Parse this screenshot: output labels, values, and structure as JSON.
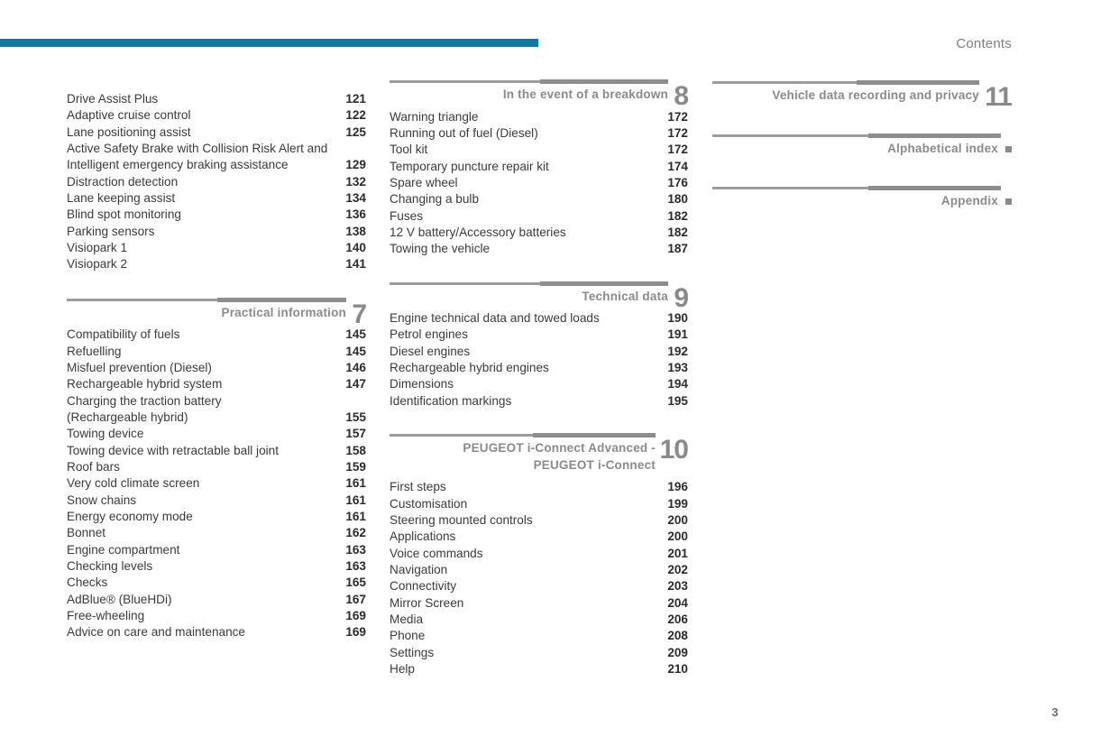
{
  "header": {
    "title": "Contents"
  },
  "footer": {
    "page_number": "3"
  },
  "colors": {
    "accent": "#0e7aa6",
    "rule_gray": "#8d8d8d",
    "heading_gray": "#8a8a8a",
    "text_dark": "#3a3a3a"
  },
  "columns": [
    {
      "name": "toc-column-1",
      "sections": [
        {
          "number": "",
          "bullet": false,
          "title_lines": [],
          "entries": [
            {
              "label": "Drive Assist Plus",
              "page": "121"
            },
            {
              "label": "Adaptive cruise control",
              "page": "122"
            },
            {
              "label": "Lane positioning assist",
              "page": "125"
            },
            {
              "label": "Active Safety Brake with Collision Risk Alert and",
              "page": ""
            },
            {
              "label": "Intelligent emergency braking assistance",
              "page": "129"
            },
            {
              "label": "Distraction detection",
              "page": "132"
            },
            {
              "label": "Lane keeping assist",
              "page": "134"
            },
            {
              "label": "Blind spot monitoring",
              "page": "136"
            },
            {
              "label": "Parking sensors",
              "page": "138"
            },
            {
              "label": "Visiopark 1",
              "page": "140"
            },
            {
              "label": "Visiopark 2",
              "page": "141"
            }
          ]
        },
        {
          "number": "7",
          "bullet": false,
          "title_lines": [
            "Practical information"
          ],
          "entries": [
            {
              "label": "Compatibility of fuels",
              "page": "145"
            },
            {
              "label": "Refuelling",
              "page": "145"
            },
            {
              "label": "Misfuel prevention (Diesel)",
              "page": "146"
            },
            {
              "label": "Rechargeable hybrid system",
              "page": "147"
            },
            {
              "label": "Charging the traction battery",
              "page": ""
            },
            {
              "label": "(Rechargeable hybrid)",
              "page": "155"
            },
            {
              "label": "Towing device",
              "page": "157"
            },
            {
              "label": "Towing device with retractable ball joint",
              "page": "158"
            },
            {
              "label": "Roof bars",
              "page": "159"
            },
            {
              "label": "Very cold climate screen",
              "page": "161"
            },
            {
              "label": "Snow chains",
              "page": "161"
            },
            {
              "label": "Energy economy mode",
              "page": "161"
            },
            {
              "label": "Bonnet",
              "page": "162"
            },
            {
              "label": "Engine compartment",
              "page": "163"
            },
            {
              "label": "Checking levels",
              "page": "163"
            },
            {
              "label": "Checks",
              "page": "165"
            },
            {
              "label": "AdBlue® (BlueHDi)",
              "page": "167"
            },
            {
              "label": "Free-wheeling",
              "page": "169"
            },
            {
              "label": "Advice on care and maintenance",
              "page": "169"
            }
          ]
        }
      ]
    },
    {
      "name": "toc-column-2",
      "sections": [
        {
          "number": "8",
          "bullet": false,
          "title_lines": [
            "In the event of a breakdown"
          ],
          "entries": [
            {
              "label": "Warning triangle",
              "page": "172"
            },
            {
              "label": "Running out of fuel (Diesel)",
              "page": "172"
            },
            {
              "label": "Tool kit",
              "page": "172"
            },
            {
              "label": "Temporary puncture repair kit",
              "page": "174"
            },
            {
              "label": "Spare wheel",
              "page": "176"
            },
            {
              "label": "Changing a bulb",
              "page": "180"
            },
            {
              "label": "Fuses",
              "page": "182"
            },
            {
              "label": "12 V battery/Accessory batteries",
              "page": "182"
            },
            {
              "label": "Towing the vehicle",
              "page": "187"
            }
          ]
        },
        {
          "number": "9",
          "bullet": false,
          "title_lines": [
            "Technical data"
          ],
          "entries": [
            {
              "label": "Engine technical data and towed loads",
              "page": "190"
            },
            {
              "label": "Petrol engines",
              "page": "191"
            },
            {
              "label": "Diesel engines",
              "page": "192"
            },
            {
              "label": "Rechargeable hybrid engines",
              "page": "193"
            },
            {
              "label": "Dimensions",
              "page": "194"
            },
            {
              "label": "Identification markings",
              "page": "195"
            }
          ]
        },
        {
          "number": "10",
          "bullet": false,
          "title_lines": [
            "PEUGEOT i-Connect Advanced -",
            "PEUGEOT i-Connect"
          ],
          "entries": [
            {
              "label": "First steps",
              "page": "196"
            },
            {
              "label": "Customisation",
              "page": "199"
            },
            {
              "label": "Steering mounted controls",
              "page": "200"
            },
            {
              "label": "Applications",
              "page": "200"
            },
            {
              "label": "Voice commands",
              "page": "201"
            },
            {
              "label": "Navigation",
              "page": "202"
            },
            {
              "label": "Connectivity",
              "page": "203"
            },
            {
              "label": "Mirror Screen",
              "page": "204"
            },
            {
              "label": "Media",
              "page": "206"
            },
            {
              "label": "Phone",
              "page": "208"
            },
            {
              "label": "Settings",
              "page": "209"
            },
            {
              "label": "Help",
              "page": "210"
            }
          ]
        }
      ]
    },
    {
      "name": "toc-column-3",
      "sections": [
        {
          "number": "11",
          "bullet": false,
          "title_lines": [
            "Vehicle data recording and privacy"
          ],
          "entries": []
        },
        {
          "number": "",
          "bullet": true,
          "title_lines": [
            "Alphabetical index"
          ],
          "entries": []
        },
        {
          "number": "",
          "bullet": true,
          "title_lines": [
            "Appendix"
          ],
          "entries": []
        }
      ]
    }
  ]
}
